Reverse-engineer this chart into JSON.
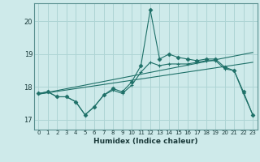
{
  "xlabel": "Humidex (Indice chaleur)",
  "bg_color": "#ceeaea",
  "line_color": "#1e7068",
  "grid_color": "#aed4d4",
  "xlim": [
    -0.5,
    23.5
  ],
  "ylim": [
    16.7,
    20.55
  ],
  "yticks": [
    17,
    18,
    19,
    20
  ],
  "xticks": [
    0,
    1,
    2,
    3,
    4,
    5,
    6,
    7,
    8,
    9,
    10,
    11,
    12,
    13,
    14,
    15,
    16,
    17,
    18,
    19,
    20,
    21,
    22,
    23
  ],
  "series_main": {
    "x": [
      0,
      1,
      2,
      3,
      4,
      5,
      6,
      7,
      8,
      9,
      10,
      11,
      12,
      13,
      14,
      15,
      16,
      17,
      18,
      19,
      20,
      21,
      22,
      23
    ],
    "y": [
      17.8,
      17.85,
      17.7,
      17.7,
      17.55,
      17.15,
      17.4,
      17.75,
      17.95,
      17.85,
      18.15,
      18.65,
      20.35,
      18.85,
      19.0,
      18.9,
      18.85,
      18.8,
      18.85,
      18.85,
      18.6,
      18.5,
      17.85,
      17.15
    ]
  },
  "series_second": {
    "x": [
      0,
      1,
      2,
      3,
      4,
      5,
      6,
      7,
      8,
      9,
      10,
      11,
      12,
      13,
      14,
      15,
      16,
      17,
      18,
      19,
      20,
      21,
      22,
      23
    ],
    "y": [
      17.8,
      17.85,
      17.7,
      17.7,
      17.55,
      17.15,
      17.4,
      17.75,
      17.9,
      17.8,
      18.05,
      18.45,
      18.75,
      18.65,
      18.7,
      18.7,
      18.7,
      18.75,
      18.8,
      18.8,
      18.55,
      18.5,
      17.8,
      17.15
    ]
  },
  "line1": [
    [
      0,
      17.78
    ],
    [
      23,
      18.75
    ]
  ],
  "line2": [
    [
      0,
      17.78
    ],
    [
      23,
      19.05
    ]
  ]
}
